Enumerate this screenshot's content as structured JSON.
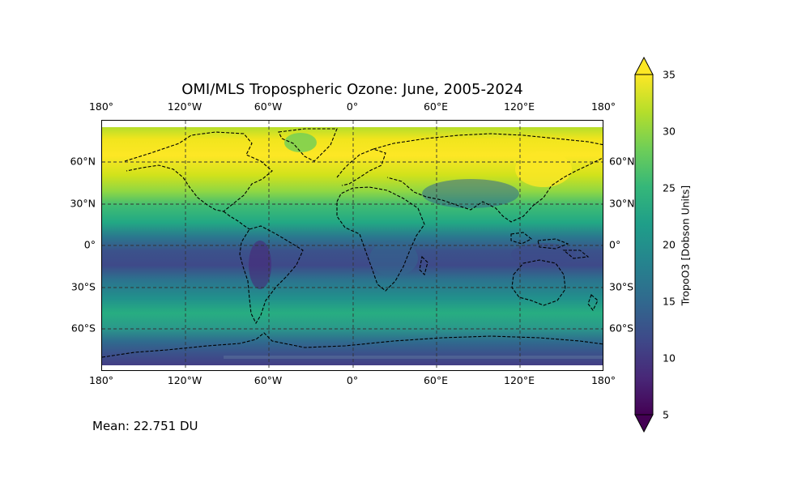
{
  "title": "OMI/MLS Tropospheric Ozone: June, 2005-2024",
  "mean_label": "Mean: 22.751 DU",
  "lon_ticks": [
    "180°",
    "120°W",
    "60°W",
    "0°",
    "60°E",
    "120°E",
    "180°"
  ],
  "lat_ticks_left": [
    "60°N",
    "30°N",
    "0°",
    "30°S",
    "60°S"
  ],
  "lat_ticks_right": [
    "60°N",
    "30°N",
    "0°",
    "30°S",
    "60°S"
  ],
  "colorbar": {
    "label": "TropoO3 [Dobson Units]",
    "ticks": [
      "35",
      "30",
      "25",
      "20",
      "15",
      "10",
      "5"
    ],
    "min": 5,
    "max": 35,
    "extend": "both",
    "colormap": "viridis",
    "colors": [
      "#440154",
      "#482878",
      "#3e4989",
      "#31688e",
      "#26828e",
      "#1f9e89",
      "#35b779",
      "#6ece58",
      "#b5de2b",
      "#fde725"
    ]
  },
  "map": {
    "projection": "PlateCarree",
    "gridlines": "dashed",
    "coastlines": "dashed"
  }
}
